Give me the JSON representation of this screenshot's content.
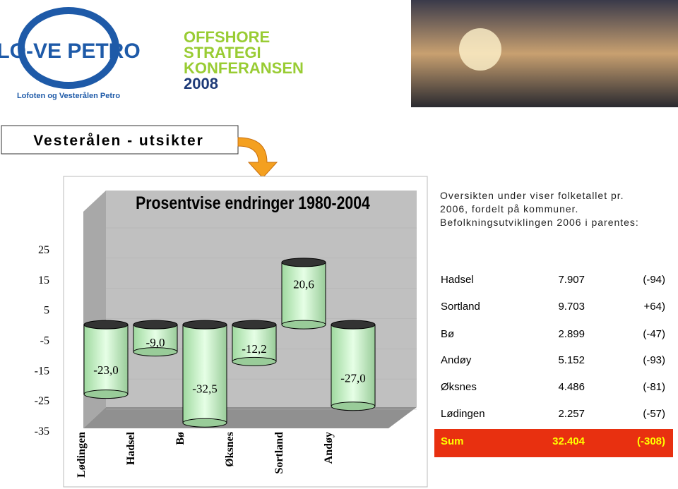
{
  "header": {
    "logo": {
      "name": "LO-VE PETRO",
      "subtitle": "Lofoten og Vesterålen Petro"
    },
    "conference": {
      "lines": [
        "OFFSHORE",
        "STRATEGI",
        "KONFERANSEN",
        "2008"
      ]
    }
  },
  "slide_title": "Vesterålen - utsikter",
  "chart_data": {
    "type": "bar",
    "title": "Prosentvise endringer 1980-2004",
    "categories": [
      "Lødingen",
      "Hadsel",
      "Bø",
      "Øksnes",
      "Sortland",
      "Andøy"
    ],
    "values": [
      -23.0,
      -9.0,
      -32.5,
      -12.2,
      20.6,
      -27.0
    ],
    "value_labels": [
      "-23,0",
      "-9,0",
      "-32,5",
      "-12,2",
      "20,6",
      "-27,0"
    ],
    "color": "#ccffcc",
    "ylim": [
      -35,
      25
    ],
    "yticks": [
      25,
      15,
      5,
      -5,
      -15,
      -25,
      -35
    ],
    "grid": true
  },
  "intro": "Oversikten under viser folketallet pr. 2006, fordelt på kommuner. Befolkningsutviklingen 2006 i parentes:",
  "table": {
    "rows": [
      [
        "Hadsel",
        "7.907",
        "(-94)"
      ],
      [
        "Sortland",
        "9.703",
        "+64)"
      ],
      [
        "Bø",
        "2.899",
        "(-47)"
      ],
      [
        "Andøy",
        "5.152",
        "(-93)"
      ],
      [
        "Øksnes",
        "4.486",
        "(-81)"
      ],
      [
        "Lødingen",
        "2.257",
        "(-57)"
      ]
    ],
    "sum": [
      "Sum",
      "32.404",
      "(-308)"
    ]
  }
}
